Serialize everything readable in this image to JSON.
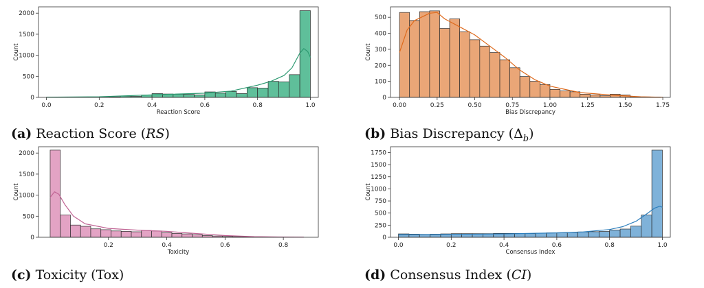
{
  "chart_data": [
    {
      "id": "a",
      "type": "bar",
      "caption": {
        "tag": "(a)",
        "text": "Reaction Score",
        "symbol": "RS"
      },
      "xlabel": "Reaction Score",
      "ylabel": "Count",
      "xlim": [
        -0.03,
        1.03
      ],
      "ylim": [
        0,
        2150
      ],
      "xticks": [
        0.0,
        0.2,
        0.4,
        0.6,
        0.8,
        1.0
      ],
      "xtick_labels": [
        "0.0",
        "0.2",
        "0.4",
        "0.6",
        "0.8",
        "1.0"
      ],
      "yticks": [
        0,
        500,
        1000,
        1500,
        2000
      ],
      "ytick_labels": [
        "0",
        "500",
        "1000",
        "1500",
        "2000"
      ],
      "color": "#5fbf9a",
      "kde_color": "#2e9a72",
      "bin_edges": [
        0.0,
        0.04,
        0.08,
        0.12,
        0.16,
        0.2,
        0.24,
        0.28,
        0.32,
        0.36,
        0.4,
        0.44,
        0.48,
        0.52,
        0.56,
        0.6,
        0.64,
        0.68,
        0.72,
        0.76,
        0.8,
        0.84,
        0.88,
        0.92,
        0.96,
        1.0
      ],
      "counts": [
        2,
        3,
        3,
        4,
        5,
        8,
        14,
        30,
        25,
        55,
        90,
        80,
        75,
        70,
        60,
        130,
        100,
        140,
        90,
        230,
        220,
        380,
        370,
        540,
        2060
      ],
      "kde": {
        "x": [
          0.0,
          0.2,
          0.4,
          0.6,
          0.7,
          0.8,
          0.85,
          0.9,
          0.93,
          0.96,
          0.975,
          0.99,
          1.0
        ],
        "y": [
          5,
          15,
          60,
          100,
          150,
          290,
          380,
          520,
          700,
          1050,
          1160,
          1090,
          950
        ]
      }
    },
    {
      "id": "b",
      "type": "bar",
      "caption": {
        "tag": "(b)",
        "text": "Bias Discrepancy",
        "symbol": "Δ",
        "sub": "b"
      },
      "xlabel": "Bias Discrepancy",
      "ylabel": "Count",
      "xlim": [
        -0.06,
        1.8
      ],
      "ylim": [
        0,
        565
      ],
      "xticks": [
        0.0,
        0.25,
        0.5,
        0.75,
        1.0,
        1.25,
        1.5,
        1.75
      ],
      "xtick_labels": [
        "0.00",
        "0.25",
        "0.50",
        "0.75",
        "1.00",
        "1.25",
        "1.50",
        "1.75"
      ],
      "yticks": [
        0,
        100,
        200,
        300,
        400,
        500
      ],
      "ytick_labels": [
        "0",
        "100",
        "200",
        "300",
        "400",
        "500"
      ],
      "color": "#eaa677",
      "kde_color": "#de6a1c",
      "bin_edges": [
        0.0,
        0.0667,
        0.1333,
        0.2,
        0.2667,
        0.3333,
        0.4,
        0.4667,
        0.5333,
        0.6,
        0.6667,
        0.7333,
        0.8,
        0.8667,
        0.9333,
        1.0,
        1.0667,
        1.1333,
        1.2,
        1.2667,
        1.3333,
        1.4,
        1.4667,
        1.5333,
        1.6,
        1.6667,
        1.7333
      ],
      "counts": [
        530,
        480,
        535,
        540,
        430,
        490,
        410,
        360,
        320,
        280,
        235,
        185,
        130,
        100,
        80,
        50,
        40,
        35,
        20,
        15,
        10,
        20,
        15,
        5,
        3,
        2
      ],
      "kde": {
        "x": [
          0.0,
          0.05,
          0.1,
          0.2,
          0.25,
          0.3,
          0.4,
          0.5,
          0.6,
          0.7,
          0.8,
          0.9,
          1.0,
          1.2,
          1.4,
          1.6,
          1.75
        ],
        "y": [
          280,
          420,
          480,
          525,
          530,
          490,
          440,
          390,
          320,
          250,
          170,
          110,
          70,
          30,
          15,
          4,
          1
        ]
      }
    },
    {
      "id": "c",
      "type": "bar",
      "caption": {
        "tag": "(c)",
        "text": "Toxicity (Tox)"
      },
      "xlabel": "Toxicity",
      "ylabel": "Count",
      "xlim": [
        -0.04,
        0.92
      ],
      "ylim": [
        0,
        2150
      ],
      "xticks": [
        0.2,
        0.4,
        0.6,
        0.8
      ],
      "xtick_labels": [
        "0.2",
        "0.4",
        "0.6",
        "0.8"
      ],
      "yticks": [
        0,
        500,
        1000,
        1500,
        2000
      ],
      "ytick_labels": [
        "0",
        "500",
        "1000",
        "1500",
        "2000"
      ],
      "color": "#e3a3c4",
      "kde_color": "#c06494",
      "bin_edges": [
        0.0,
        0.0348,
        0.0696,
        0.1044,
        0.1392,
        0.174,
        0.2088,
        0.2436,
        0.2784,
        0.3132,
        0.348,
        0.3828,
        0.4176,
        0.4524,
        0.4872,
        0.522,
        0.5568,
        0.5916,
        0.6264,
        0.6612,
        0.696,
        0.7308,
        0.7656,
        0.8004,
        0.8352,
        0.87
      ],
      "counts": [
        2070,
        530,
        290,
        260,
        200,
        180,
        150,
        140,
        130,
        160,
        150,
        110,
        90,
        80,
        60,
        40,
        30,
        20,
        15,
        10,
        8,
        6,
        4,
        3,
        2
      ],
      "kde": {
        "x": [
          0.0,
          0.015,
          0.03,
          0.05,
          0.08,
          0.12,
          0.2,
          0.3,
          0.4,
          0.5,
          0.6,
          0.7,
          0.8,
          0.87
        ],
        "y": [
          950,
          1080,
          1020,
          780,
          500,
          320,
          210,
          170,
          140,
          90,
          40,
          15,
          5,
          2
        ]
      }
    },
    {
      "id": "d",
      "type": "bar",
      "caption": {
        "tag": "(d)",
        "text": "Consensus Index",
        "symbol": "CI"
      },
      "xlabel": "Consensus Index",
      "ylabel": "Count",
      "xlim": [
        -0.03,
        1.03
      ],
      "ylim": [
        0,
        1870
      ],
      "xticks": [
        0.0,
        0.2,
        0.4,
        0.6,
        0.8,
        1.0
      ],
      "xtick_labels": [
        "0.0",
        "0.2",
        "0.4",
        "0.6",
        "0.8",
        "1.0"
      ],
      "yticks": [
        0,
        250,
        500,
        750,
        1000,
        1250,
        1500,
        1750
      ],
      "ytick_labels": [
        "0",
        "250",
        "500",
        "750",
        "1000",
        "1250",
        "1500",
        "1750"
      ],
      "color": "#7fb2d9",
      "kde_color": "#2d7fbd",
      "bin_edges": [
        0.0,
        0.04,
        0.08,
        0.12,
        0.16,
        0.2,
        0.24,
        0.28,
        0.32,
        0.36,
        0.4,
        0.44,
        0.48,
        0.52,
        0.56,
        0.6,
        0.64,
        0.68,
        0.72,
        0.76,
        0.8,
        0.84,
        0.88,
        0.92,
        0.96,
        1.0
      ],
      "counts": [
        70,
        65,
        60,
        65,
        70,
        75,
        75,
        75,
        75,
        80,
        80,
        80,
        75,
        85,
        90,
        95,
        100,
        110,
        115,
        120,
        150,
        170,
        230,
        460,
        1800
      ],
      "kde": {
        "x": [
          0.0,
          0.2,
          0.4,
          0.6,
          0.7,
          0.8,
          0.85,
          0.9,
          0.94,
          0.97,
          0.99,
          1.0
        ],
        "y": [
          50,
          60,
          70,
          90,
          110,
          160,
          220,
          330,
          480,
          600,
          640,
          620
        ]
      }
    }
  ]
}
